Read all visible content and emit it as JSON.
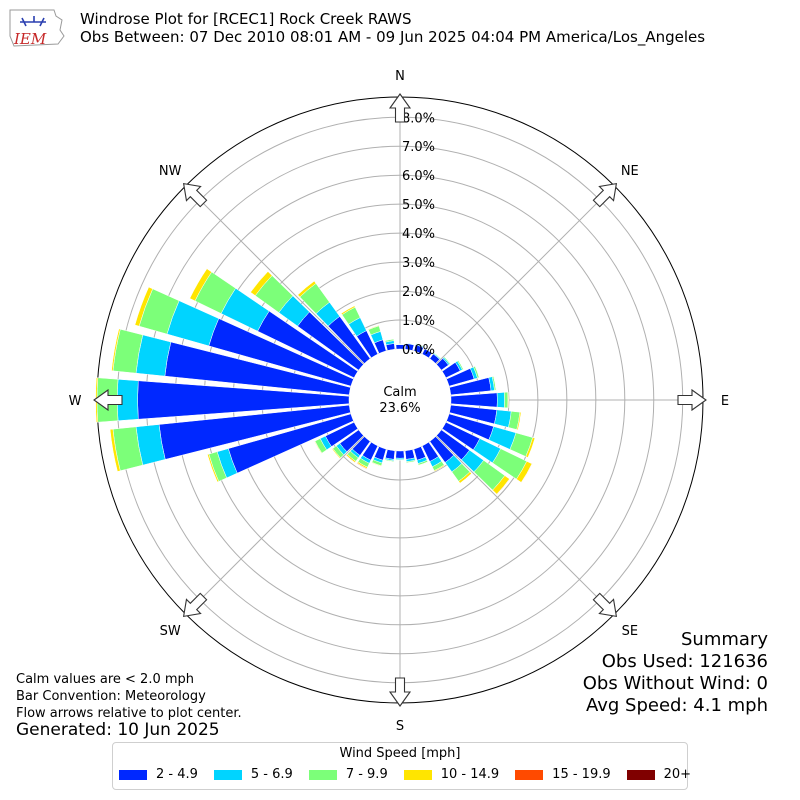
{
  "header": {
    "logo_text": "IEM",
    "title": "Windrose Plot for [RCEC1] Rock Creek RAWS",
    "subtitle": "Obs Between: 07 Dec 2010 08:01 AM - 09 Jun 2025 04:04 PM America/Los_Angeles"
  },
  "summary": {
    "title": "Summary",
    "obs_used": "Obs Used: 121636",
    "obs_without_wind": "Obs Without Wind: 0",
    "avg_speed": "Avg Speed: 4.1 mph"
  },
  "notes": {
    "calm": "Calm values are < 2.0 mph",
    "bar": "Bar Convention: Meteorology",
    "flow": "Flow arrows relative to plot center.",
    "generated": "Generated: 10 Jun 2025"
  },
  "legend": {
    "title": "Wind Speed [mph]",
    "items": [
      {
        "label": "2 - 4.9",
        "color": "#0028ff"
      },
      {
        "label": "5 - 6.9",
        "color": "#00d4ff"
      },
      {
        "label": "7 - 9.9",
        "color": "#7cff79"
      },
      {
        "label": "10 - 14.9",
        "color": "#ffe500"
      },
      {
        "label": "15 - 19.9",
        "color": "#ff4a00"
      },
      {
        "label": "20+",
        "color": "#800000"
      }
    ]
  },
  "chart_data": {
    "type": "windrose",
    "calm_label": "Calm",
    "calm_value": "23.6%",
    "cardinals": [
      "N",
      "NE",
      "E",
      "SE",
      "S",
      "SW",
      "W",
      "NW"
    ],
    "rings": [
      "0.0%",
      "1.0%",
      "2.0%",
      "3.0%",
      "4.0%",
      "5.0%",
      "6.0%",
      "7.0%",
      "8.0%"
    ],
    "r_max": 8.7,
    "bins": [
      "2 - 4.9",
      "5 - 6.9",
      "7 - 9.9",
      "10 - 14.9",
      "15 - 19.9",
      "20+"
    ],
    "directions_deg": [
      0,
      10,
      20,
      30,
      40,
      50,
      60,
      70,
      80,
      90,
      100,
      110,
      120,
      130,
      140,
      150,
      160,
      170,
      180,
      190,
      200,
      210,
      220,
      230,
      240,
      250,
      260,
      270,
      280,
      290,
      300,
      310,
      320,
      330,
      340,
      350
    ],
    "values": [
      [
        0.15,
        0.02,
        0.01,
        0,
        0,
        0
      ],
      [
        0.2,
        0.02,
        0.01,
        0,
        0,
        0
      ],
      [
        0.22,
        0.03,
        0.02,
        0,
        0,
        0
      ],
      [
        0.2,
        0.02,
        0.01,
        0,
        0,
        0
      ],
      [
        0.2,
        0.03,
        0.02,
        0,
        0,
        0
      ],
      [
        0.3,
        0.05,
        0.03,
        0,
        0,
        0
      ],
      [
        0.55,
        0.08,
        0.04,
        0,
        0,
        0
      ],
      [
        0.9,
        0.12,
        0.06,
        0.01,
        0,
        0
      ],
      [
        1.4,
        0.12,
        0.05,
        0.01,
        0,
        0
      ],
      [
        1.6,
        0.25,
        0.12,
        0.02,
        0,
        0
      ],
      [
        1.6,
        0.5,
        0.3,
        0.04,
        0,
        0
      ],
      [
        1.6,
        0.8,
        0.6,
        0.08,
        0,
        0
      ],
      [
        1.3,
        0.8,
        1.0,
        0.2,
        0.01,
        0
      ],
      [
        1.2,
        0.6,
        0.9,
        0.2,
        0.01,
        0
      ],
      [
        0.9,
        0.4,
        0.4,
        0.08,
        0,
        0
      ],
      [
        0.6,
        0.2,
        0.15,
        0.03,
        0,
        0
      ],
      [
        0.4,
        0.12,
        0.06,
        0.01,
        0,
        0
      ],
      [
        0.3,
        0.08,
        0.04,
        0.01,
        0,
        0
      ],
      [
        0.25,
        0.05,
        0.02,
        0,
        0,
        0
      ],
      [
        0.3,
        0.05,
        0.03,
        0,
        0,
        0
      ],
      [
        0.4,
        0.1,
        0.1,
        0.02,
        0,
        0
      ],
      [
        0.55,
        0.12,
        0.15,
        0.05,
        0.02,
        0
      ],
      [
        0.6,
        0.1,
        0.15,
        0.05,
        0.01,
        0
      ],
      [
        0.8,
        0.15,
        0.15,
        0.03,
        0,
        0
      ],
      [
        1.1,
        0.2,
        0.2,
        0.02,
        0,
        0
      ],
      [
        4.4,
        0.4,
        0.3,
        0.05,
        0,
        0
      ],
      [
        6.6,
        0.8,
        0.8,
        0.1,
        0,
        0
      ],
      [
        7.3,
        0.7,
        0.7,
        0.05,
        0,
        0
      ],
      [
        6.4,
        1.0,
        0.8,
        0.05,
        0,
        0
      ],
      [
        5.1,
        1.5,
        1.0,
        0.15,
        0,
        0
      ],
      [
        3.7,
        1.4,
        1.0,
        0.2,
        0,
        0
      ],
      [
        2.6,
        0.8,
        1.0,
        0.2,
        0,
        0
      ],
      [
        1.8,
        0.6,
        0.8,
        0.1,
        0,
        0
      ],
      [
        0.9,
        0.5,
        0.4,
        0.05,
        0,
        0
      ],
      [
        0.4,
        0.3,
        0.2,
        0.02,
        0,
        0
      ],
      [
        0.2,
        0.1,
        0.05,
        0,
        0,
        0
      ]
    ]
  }
}
